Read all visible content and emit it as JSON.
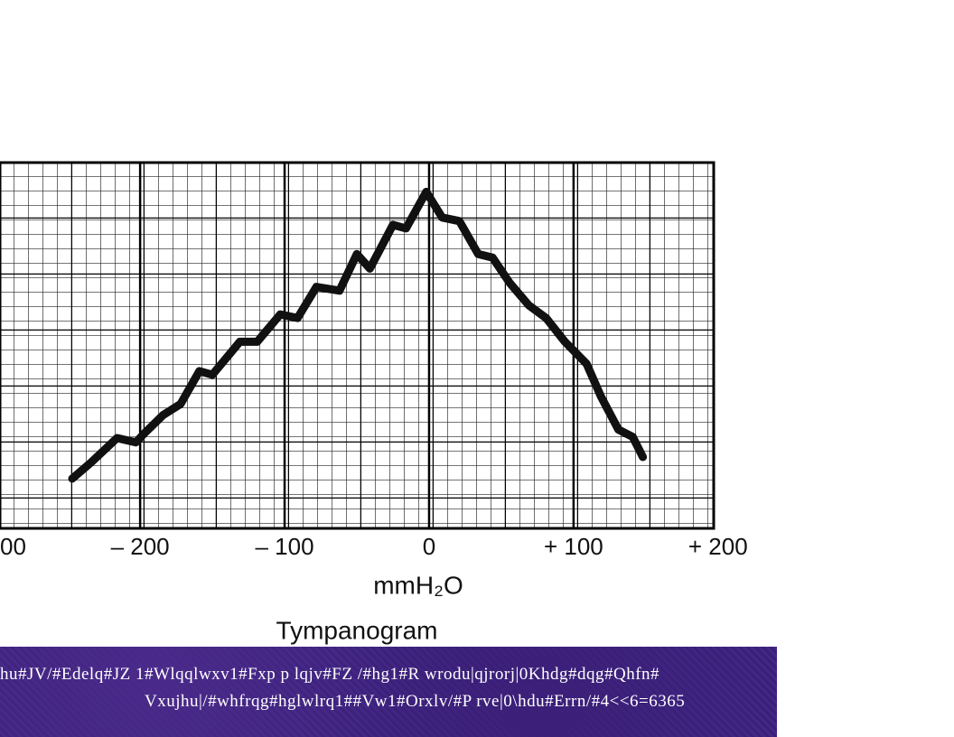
{
  "chart_data": {
    "type": "line",
    "title": "Tympanogram",
    "x_label": "mmH₂O",
    "x": [
      -247,
      -234,
      -216,
      -203,
      -197,
      -184,
      -172,
      -159,
      -150,
      -131,
      -119,
      -103,
      -91,
      -78,
      -62,
      -50,
      -41,
      -25,
      -16,
      -2,
      9,
      21,
      34,
      44,
      56,
      69,
      81,
      94,
      109,
      119,
      131,
      141,
      148
    ],
    "values": [
      13.6,
      18,
      24.7,
      23.5,
      26,
      31,
      34,
      43,
      42,
      51,
      51,
      58.5,
      57.5,
      66,
      65,
      75,
      71,
      83,
      82,
      92,
      85,
      84,
      75,
      74,
      67,
      61,
      57.5,
      51,
      45,
      36,
      27,
      25,
      19.5
    ],
    "color": "#111111",
    "xlim": [
      -297,
      197
    ],
    "ylim": [
      0,
      100
    ],
    "xticks": [
      {
        "value": -300,
        "label": "00"
      },
      {
        "value": -200,
        "label": "– 200"
      },
      {
        "value": -100,
        "label": "– 100"
      },
      0,
      {
        "value": 100,
        "label": "+ 100"
      },
      {
        "value": 200,
        "label": "+ 200"
      }
    ],
    "grid": true
  },
  "footer": {
    "lines": [
      "hu#JV/#Edelq#JZ 1#Wlqqlwxv1#Fxp p lqjv#FZ /#hg1#R wrodu|qjrorj|0Khdg#dqg#Qhfn#",
      "Vxujhu|/#whfrqg#hglwlrq1##Vw1#Orxlv/#P rve|0\\hdu#Errn/#4<<6=6365"
    ]
  }
}
